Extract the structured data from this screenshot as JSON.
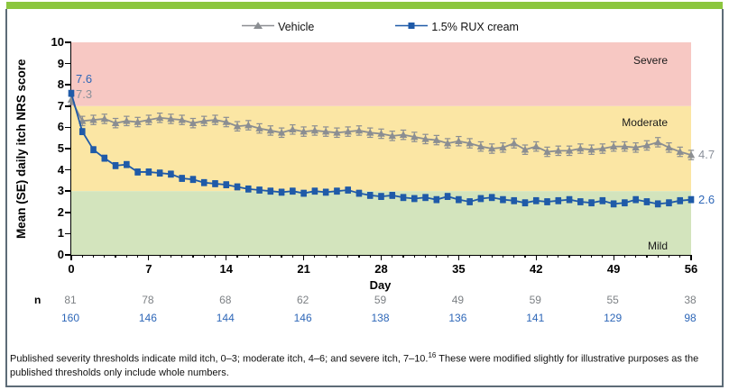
{
  "figure": {
    "accent_bar_color": "#8cc63f",
    "border_color": "#5d6b77"
  },
  "annotations": {
    "rux_start": "7.6",
    "vehicle_start": "7.3",
    "vehicle_end": "4.7",
    "rux_end": "2.6"
  },
  "n_table": {
    "row_label": "n",
    "days": [
      0,
      7,
      14,
      21,
      28,
      35,
      42,
      49,
      56
    ],
    "vehicle": [
      81,
      78,
      68,
      62,
      59,
      49,
      59,
      55,
      38
    ],
    "rux": [
      160,
      146,
      144,
      146,
      138,
      136,
      141,
      129,
      98
    ],
    "vehicle_color": "#7d8185",
    "rux_color": "#2e67b8"
  },
  "footnote": {
    "text1": "Published severity thresholds indicate mild itch, 0–3; moderate itch, 4–6; and severe itch, 7–10.",
    "ref": "16",
    "text2": " These were modified slightly for illustrative purposes as the published thresholds only include whole numbers."
  },
  "chart_data": {
    "type": "line",
    "title": "",
    "xlabel": "Day",
    "ylabel": "Mean (SE) daily itch NRS score",
    "xlim": [
      0,
      56
    ],
    "ylim": [
      0,
      10
    ],
    "x_ticks": [
      0,
      7,
      14,
      21,
      28,
      35,
      42,
      49,
      56
    ],
    "y_ticks": [
      0,
      1,
      2,
      3,
      4,
      5,
      6,
      7,
      8,
      9,
      10
    ],
    "grid": false,
    "legend_position": "top-center",
    "bands": [
      {
        "label": "Severe",
        "from": 7,
        "to": 10,
        "color": "#f7c8c3"
      },
      {
        "label": "Moderate",
        "from": 3,
        "to": 7,
        "color": "#fbe6a4"
      },
      {
        "label": "Mild",
        "from": 0,
        "to": 3,
        "color": "#d3e4bd"
      }
    ],
    "x": [
      0,
      1,
      2,
      3,
      4,
      5,
      6,
      7,
      8,
      9,
      10,
      11,
      12,
      13,
      14,
      15,
      16,
      17,
      18,
      19,
      20,
      21,
      22,
      23,
      24,
      25,
      26,
      27,
      28,
      29,
      30,
      31,
      32,
      33,
      34,
      35,
      36,
      37,
      38,
      39,
      40,
      41,
      42,
      43,
      44,
      45,
      46,
      47,
      48,
      49,
      50,
      51,
      52,
      53,
      54,
      55,
      56
    ],
    "series": [
      {
        "name": "Vehicle",
        "marker": "triangle",
        "color": "#8b8e92",
        "label_color": "#8a909a",
        "se": 0.22,
        "values": [
          7.3,
          6.3,
          6.35,
          6.4,
          6.2,
          6.3,
          6.25,
          6.35,
          6.45,
          6.4,
          6.35,
          6.2,
          6.3,
          6.35,
          6.25,
          6.05,
          6.1,
          5.95,
          5.85,
          5.75,
          5.9,
          5.8,
          5.85,
          5.8,
          5.75,
          5.8,
          5.85,
          5.75,
          5.7,
          5.6,
          5.65,
          5.55,
          5.45,
          5.4,
          5.25,
          5.35,
          5.25,
          5.1,
          5.0,
          5.05,
          5.25,
          4.95,
          5.1,
          4.85,
          4.9,
          4.9,
          5.0,
          4.95,
          5.0,
          5.1,
          5.1,
          5.05,
          5.15,
          5.3,
          5.05,
          4.85,
          4.7
        ]
      },
      {
        "name": "1.5% RUX cream",
        "marker": "square",
        "color": "#1f5aa8",
        "label_color": "#2e67b8",
        "se": 0.14,
        "values": [
          7.6,
          5.8,
          4.95,
          4.55,
          4.2,
          4.25,
          3.9,
          3.9,
          3.85,
          3.8,
          3.6,
          3.55,
          3.4,
          3.35,
          3.3,
          3.2,
          3.1,
          3.05,
          3.0,
          2.95,
          3.0,
          2.9,
          3.0,
          2.95,
          3.0,
          3.05,
          2.9,
          2.8,
          2.75,
          2.8,
          2.7,
          2.65,
          2.7,
          2.6,
          2.75,
          2.6,
          2.5,
          2.65,
          2.7,
          2.6,
          2.55,
          2.45,
          2.55,
          2.5,
          2.55,
          2.6,
          2.5,
          2.45,
          2.55,
          2.4,
          2.45,
          2.6,
          2.5,
          2.4,
          2.45,
          2.55,
          2.6
        ]
      }
    ]
  }
}
